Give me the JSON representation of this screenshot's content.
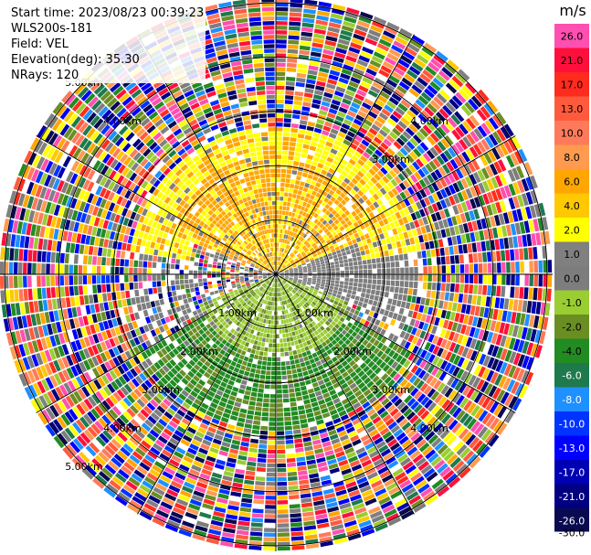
{
  "info": {
    "start_time_label": "Start time: 2023/08/23 00:39:23",
    "instrument": "WLS200s-181",
    "field_label": "Field: VEL",
    "elevation_label": "Elevation(deg): 35.30",
    "nrays_label": "NRays: 120"
  },
  "colorbar": {
    "unit": "m/s",
    "ticks": [
      "26.0",
      "21.0",
      "17.0",
      "13.0",
      "10.0",
      "8.0",
      "6.0",
      "4.0",
      "2.0",
      "1.0",
      "0.0",
      "-1.0",
      "-2.0",
      "-4.0",
      "-6.0",
      "-8.0",
      "-10.0",
      "-13.0",
      "-17.0",
      "-21.0",
      "-26.0",
      "-30.0"
    ],
    "bins": [
      {
        "color": "#ff4fb0",
        "label": "26.0"
      },
      {
        "color": "#ff0f3c",
        "label": "21.0"
      },
      {
        "color": "#ff2b1f",
        "label": "17.0"
      },
      {
        "color": "#ff5a3c",
        "label": "13.0"
      },
      {
        "color": "#ff7a5a",
        "label": "10.0"
      },
      {
        "color": "#ff9a4f",
        "label": "8.0"
      },
      {
        "color": "#ffa600",
        "label": "6.0"
      },
      {
        "color": "#ffc800",
        "label": "4.0"
      },
      {
        "color": "#ffff00",
        "label": "2.0"
      },
      {
        "color": "#808080",
        "label": "1.0"
      },
      {
        "color": "#7d7d7d",
        "label": "0.0"
      },
      {
        "color": "#9acd32",
        "label": "-1.0"
      },
      {
        "color": "#6b8e23",
        "label": "-2.0"
      },
      {
        "color": "#228b22",
        "label": "-4.0"
      },
      {
        "color": "#1e7a4c",
        "label": "-6.0"
      },
      {
        "color": "#1e90ff",
        "label": "-8.0"
      },
      {
        "color": "#0033ff",
        "label": "-10.0"
      },
      {
        "color": "#0000ff",
        "label": "-13.0"
      },
      {
        "color": "#0000b4",
        "label": "-17.0"
      },
      {
        "color": "#000080",
        "label": "-21.0"
      },
      {
        "color": "#0a0a50",
        "label": "-26.0"
      }
    ]
  },
  "chart_data": {
    "type": "ppi-radar",
    "field": "VEL",
    "unit": "m/s",
    "nrays": 120,
    "elevation_deg": 35.3,
    "range_rings_km": [
      1,
      2,
      3,
      4,
      5
    ],
    "max_range_km": 5.1,
    "azimuth_spokes_deg": [
      0,
      30,
      60,
      90,
      120,
      150,
      180,
      210,
      240,
      270,
      300,
      330
    ],
    "range_labels": [
      {
        "text": "1.00km",
        "ring": 1,
        "quadrant": "sw"
      },
      {
        "text": "1.00km",
        "ring": 1,
        "quadrant": "se"
      },
      {
        "text": "2.00km",
        "ring": 2,
        "quadrant": "sw"
      },
      {
        "text": "2.00km",
        "ring": 2,
        "quadrant": "se"
      },
      {
        "text": "3.00km",
        "ring": 3,
        "quadrant": "sw"
      },
      {
        "text": "3.00km",
        "ring": 3,
        "quadrant": "se"
      },
      {
        "text": "3.00km",
        "ring": 3,
        "quadrant": "ne"
      },
      {
        "text": "4.00km",
        "ring": 4,
        "quadrant": "sw"
      },
      {
        "text": "4.00km",
        "ring": 4,
        "quadrant": "se"
      },
      {
        "text": "4.00km",
        "ring": 4,
        "quadrant": "nw"
      },
      {
        "text": "4.00km",
        "ring": 4,
        "quadrant": "ne"
      },
      {
        "text": "5.00km",
        "ring": 5,
        "quadrant": "sw"
      },
      {
        "text": "5.00km",
        "ring": 5,
        "quadrant": "nw"
      }
    ],
    "regions": [
      {
        "desc": "north half inner",
        "range_km": [
          0,
          2.2
        ],
        "azimuth_deg": [
          290,
          70
        ],
        "dominant_velocity": 6.0,
        "secondary_velocity": 2.0
      },
      {
        "desc": "north half outer",
        "range_km": [
          1.6,
          2.7
        ],
        "azimuth_deg": [
          280,
          80
        ],
        "dominant_velocity": 2.0,
        "secondary_velocity": 6.0
      },
      {
        "desc": "east-west band",
        "range_km": [
          0,
          2.5
        ],
        "azimuth_deg": [
          70,
          110
        ],
        "dominant_velocity": 0.0
      },
      {
        "desc": "south half inner",
        "range_km": [
          0,
          1.5
        ],
        "azimuth_deg": [
          110,
          250
        ],
        "dominant_velocity": -1.0,
        "secondary_velocity": -2.0
      },
      {
        "desc": "south half outer",
        "range_km": [
          0.8,
          2.9
        ],
        "azimuth_deg": [
          120,
          240
        ],
        "dominant_velocity": -4.0,
        "secondary_velocity": -2.0
      },
      {
        "desc": "far range noise",
        "range_km": [
          2.7,
          5.1
        ],
        "azimuth_deg": [
          0,
          360
        ],
        "dominant_velocity": "noise"
      }
    ]
  }
}
